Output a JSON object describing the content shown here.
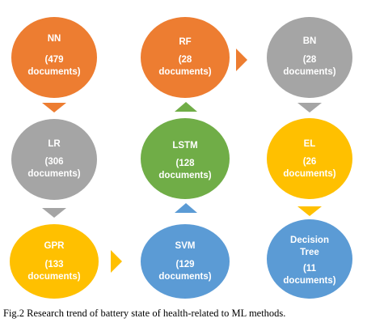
{
  "diagram": {
    "nodes": [
      {
        "id": "nn",
        "label": "NN",
        "count": "(479",
        "unit": "documents)",
        "color": "#ED7D31"
      },
      {
        "id": "rf",
        "label": "RF",
        "count": "(28",
        "unit": "documents)",
        "color": "#ED7D31"
      },
      {
        "id": "bn",
        "label": "BN",
        "count": "(28",
        "unit": "documents)",
        "color": "#A5A5A5"
      },
      {
        "id": "lr",
        "label": "LR",
        "count": "(306",
        "unit": "documents)",
        "color": "#A5A5A5"
      },
      {
        "id": "lstm",
        "label": "LSTM",
        "count": "(128",
        "unit": "documents)",
        "color": "#70AD47"
      },
      {
        "id": "el",
        "label": "EL",
        "count": "(26",
        "unit": "documents)",
        "color": "#FFC000"
      },
      {
        "id": "gpr",
        "label": "GPR",
        "count": "(133",
        "unit": "documents)",
        "color": "#FFC000"
      },
      {
        "id": "svm",
        "label": "SVM",
        "count": "(129",
        "unit": "documents)",
        "color": "#5B9BD5"
      },
      {
        "id": "dt",
        "label": "Decision",
        "label2": "Tree",
        "count": "(11",
        "unit": "documents)",
        "color": "#5B9BD5"
      }
    ],
    "arrows": [
      {
        "id": "nn-lr",
        "from": "NN",
        "to": "LR",
        "direction": "down",
        "color": "#ED7D31"
      },
      {
        "id": "lr-gpr",
        "from": "LR",
        "to": "GPR",
        "direction": "down",
        "color": "#A5A5A5"
      },
      {
        "id": "gpr-svm",
        "from": "GPR",
        "to": "SVM",
        "direction": "right",
        "color": "#FFC000"
      },
      {
        "id": "svm-lstm",
        "from": "SVM",
        "to": "LSTM",
        "direction": "up",
        "color": "#5B9BD5"
      },
      {
        "id": "lstm-rf",
        "from": "LSTM",
        "to": "RF",
        "direction": "up",
        "color": "#70AD47"
      },
      {
        "id": "rf-bn",
        "from": "RF",
        "to": "BN",
        "direction": "right",
        "color": "#ED7D31"
      },
      {
        "id": "bn-el",
        "from": "BN",
        "to": "EL",
        "direction": "down",
        "color": "#A5A5A5"
      },
      {
        "id": "el-dt",
        "from": "EL",
        "to": "Decision Tree",
        "direction": "down",
        "color": "#FFC000"
      }
    ]
  },
  "caption": "Fig.2 Research trend of battery state of health-related to ML methods."
}
